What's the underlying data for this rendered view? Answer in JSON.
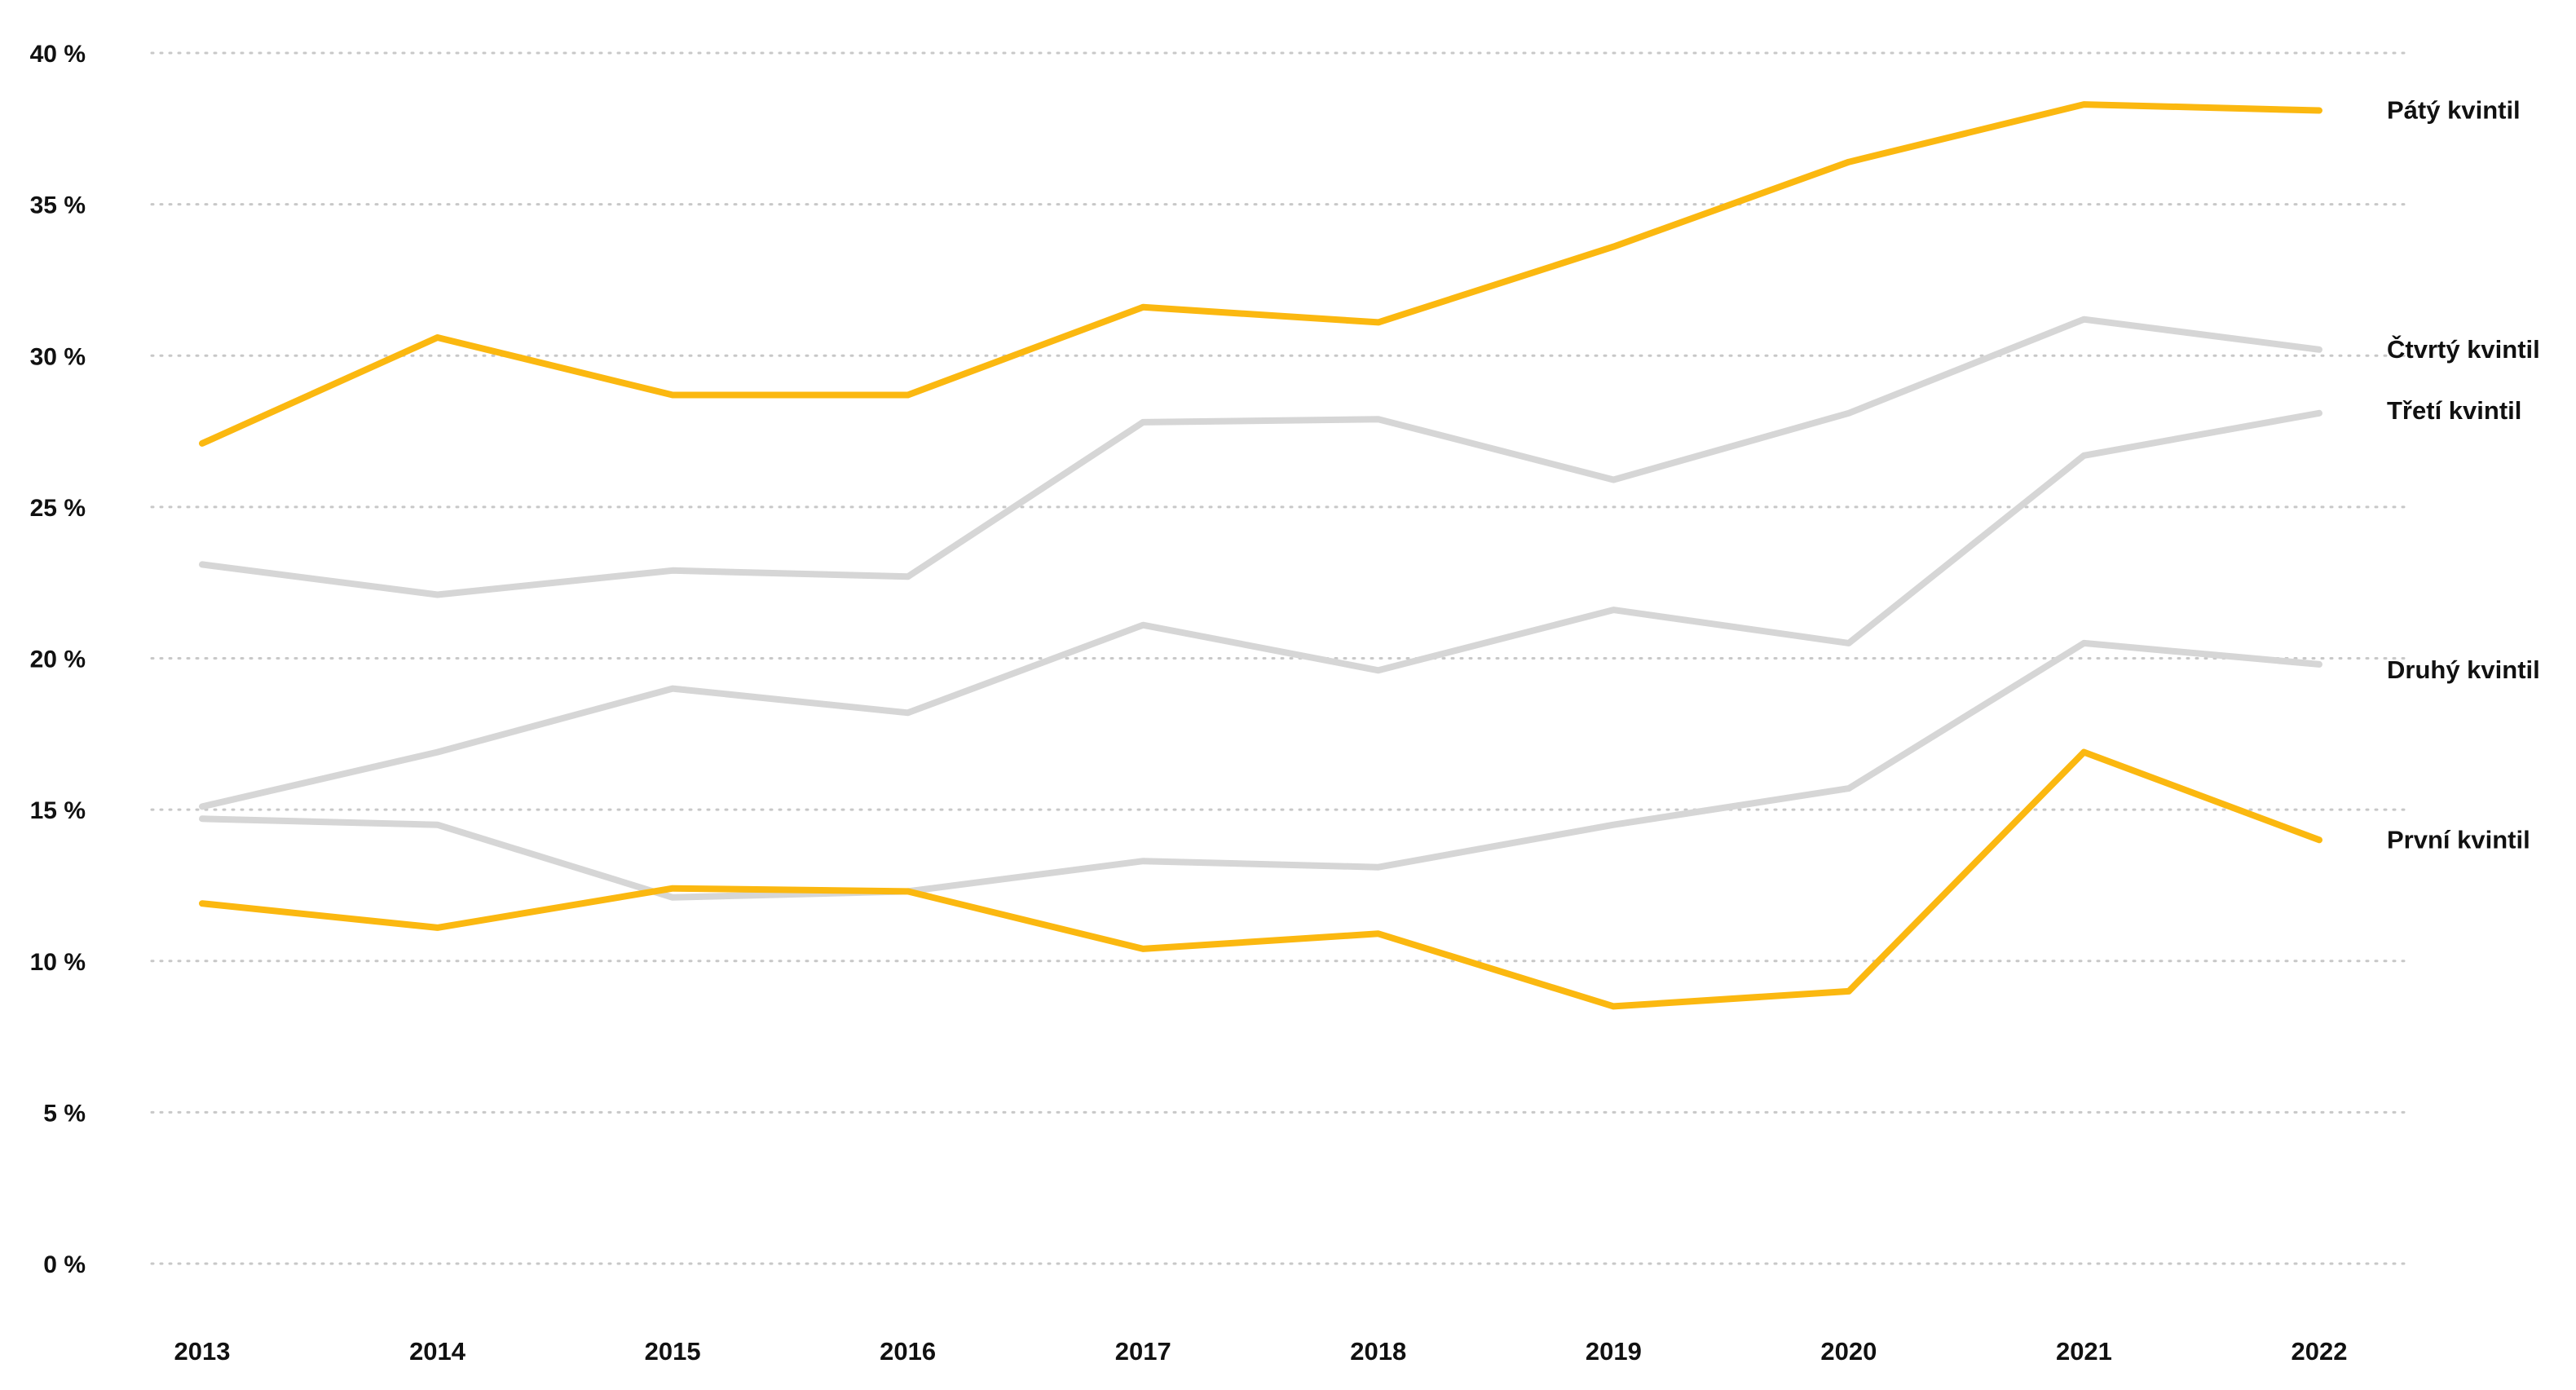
{
  "chart_data": {
    "type": "line",
    "title": "",
    "xlabel": "",
    "ylabel": "",
    "x": [
      "2013",
      "2014",
      "2015",
      "2016",
      "2017",
      "2018",
      "2019",
      "2020",
      "2021",
      "2022"
    ],
    "ylim": [
      0,
      40
    ],
    "y_ticks": [
      0,
      5,
      10,
      15,
      20,
      25,
      30,
      35,
      40
    ],
    "y_tick_labels": [
      "0 %",
      "5 %",
      "10 %",
      "15 %",
      "20 %",
      "25 %",
      "30 %",
      "35 %",
      "40 %"
    ],
    "grid": true,
    "legend": "direct labels at line ends (right)",
    "series": [
      {
        "name": "Pátý kvintil",
        "color": "#fbb810",
        "values": [
          27.1,
          30.6,
          28.7,
          28.7,
          31.6,
          31.1,
          33.6,
          36.4,
          38.3,
          38.1
        ]
      },
      {
        "name": "Čtvrtý kvintil",
        "color": "#d6d6d6",
        "values": [
          23.1,
          22.1,
          22.9,
          22.7,
          27.8,
          27.9,
          25.9,
          28.1,
          31.2,
          30.2
        ]
      },
      {
        "name": "Třetí kvintil",
        "color": "#d6d6d6",
        "values": [
          15.1,
          16.9,
          19.0,
          18.2,
          21.1,
          19.6,
          21.6,
          20.5,
          26.7,
          28.1
        ]
      },
      {
        "name": "Druhý kvintil",
        "color": "#d6d6d6",
        "values": [
          14.7,
          14.5,
          12.1,
          12.3,
          13.3,
          13.1,
          14.5,
          15.7,
          20.5,
          19.8
        ]
      },
      {
        "name": "První kvintil",
        "color": "#fbb810",
        "values": [
          11.9,
          11.1,
          12.4,
          12.3,
          10.4,
          10.9,
          8.5,
          9.0,
          16.9,
          14.0
        ]
      }
    ]
  }
}
